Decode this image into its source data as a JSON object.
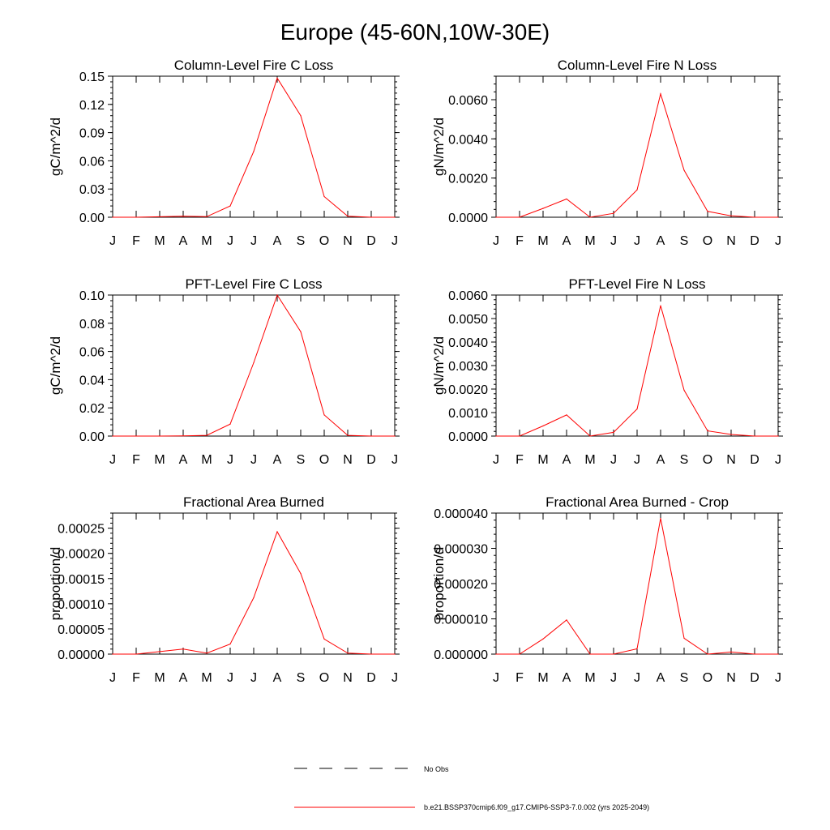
{
  "page": {
    "title": "Europe (45-60N,10W-30E)",
    "months": [
      "J",
      "F",
      "M",
      "A",
      "M",
      "J",
      "J",
      "A",
      "S",
      "O",
      "N",
      "D",
      "J"
    ]
  },
  "legend": {
    "obs_label": "No Obs",
    "model_label": "b.e21.BSSP370cmip6.f09_g17.CMIP6-SSP3-7.0.002 (yrs 2025-2049)",
    "model_color": "#ff0000",
    "obs_color": "#000000"
  },
  "chart_data": [
    {
      "type": "line",
      "title": "Column-Level Fire C Loss",
      "ylabel": "gC/m^2/d",
      "ylim": [
        0,
        0.15
      ],
      "yticks": [
        "0.00",
        "0.03",
        "0.06",
        "0.09",
        "0.12",
        "0.15"
      ],
      "series": [
        {
          "values": [
            0.0,
            0.0,
            0.0005,
            0.001,
            0.0006,
            0.012,
            0.07,
            0.148,
            0.108,
            0.022,
            0.001,
            0.0,
            0.0
          ]
        }
      ]
    },
    {
      "type": "line",
      "title": "Column-Level Fire N Loss",
      "ylabel": "gN/m^2/d",
      "ylim": [
        0,
        0.0072
      ],
      "yticks": [
        "0.0000",
        "0.0020",
        "0.0040",
        "0.0060"
      ],
      "series": [
        {
          "values": [
            0.0,
            0.0,
            0.00045,
            0.00093,
            0.0,
            0.0002,
            0.0014,
            0.0063,
            0.0024,
            0.0003,
            7e-05,
            0.0,
            0.0
          ]
        }
      ]
    },
    {
      "type": "line",
      "title": "PFT-Level Fire C Loss",
      "ylabel": "gC/m^2/d",
      "ylim": [
        0,
        0.1
      ],
      "yticks": [
        "0.00",
        "0.02",
        "0.04",
        "0.06",
        "0.08",
        "0.10"
      ],
      "series": [
        {
          "values": [
            0.0,
            0.0,
            0.0,
            0.0002,
            0.0005,
            0.0085,
            0.052,
            0.1,
            0.074,
            0.015,
            0.0005,
            0.0,
            0.0
          ]
        }
      ]
    },
    {
      "type": "line",
      "title": "PFT-Level Fire N Loss",
      "ylabel": "gN/m^2/d",
      "ylim": [
        0,
        0.006
      ],
      "yticks": [
        "0.0000",
        "0.0010",
        "0.0020",
        "0.0030",
        "0.0040",
        "0.0050",
        "0.0060"
      ],
      "series": [
        {
          "values": [
            0.0,
            0.0,
            0.00043,
            0.0009,
            0.0,
            0.00016,
            0.00115,
            0.00555,
            0.00195,
            0.00022,
            7e-05,
            0.0,
            0.0
          ]
        }
      ]
    },
    {
      "type": "line",
      "title": "Fractional Area Burned",
      "ylabel": "proportion/d",
      "ylim": [
        0,
        0.00028
      ],
      "yticks": [
        "0.00000",
        "0.00005",
        "0.00010",
        "0.00015",
        "0.00020",
        "0.00025"
      ],
      "series": [
        {
          "values": [
            0.0,
            0.0,
            5e-06,
            1e-05,
            2e-06,
            2e-05,
            0.000112,
            0.000243,
            0.00016,
            3e-05,
            2e-06,
            0.0,
            0.0
          ]
        }
      ]
    },
    {
      "type": "line",
      "title": "Fractional Area Burned - Crop",
      "ylabel": "proportion/d",
      "ylim": [
        0,
        4e-05
      ],
      "yticks": [
        "0.000000",
        "0.000010",
        "0.000020",
        "0.000030",
        "0.000040"
      ],
      "series": [
        {
          "values": [
            0.0,
            0.0,
            4.3e-06,
            9.7e-06,
            0.0,
            0.0,
            1.5e-06,
            3.85e-05,
            4.5e-06,
            0.0,
            6e-07,
            0.0,
            0.0
          ]
        }
      ]
    }
  ]
}
